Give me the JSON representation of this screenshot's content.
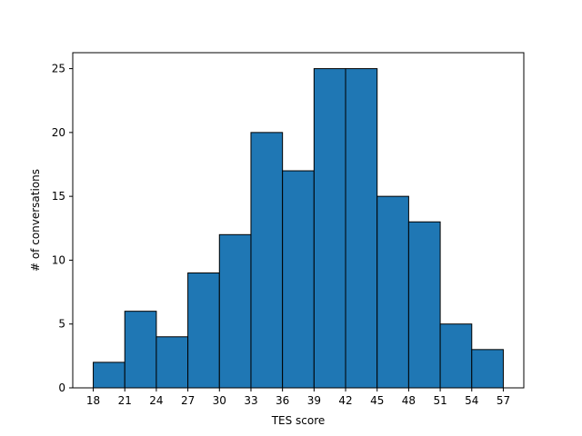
{
  "chart_data": {
    "type": "bar",
    "title": "",
    "xlabel": "TES score",
    "ylabel": "# of conversations",
    "bins": [
      {
        "start": 18,
        "end": 21,
        "count": 2
      },
      {
        "start": 21,
        "end": 24,
        "count": 6
      },
      {
        "start": 24,
        "end": 27,
        "count": 4
      },
      {
        "start": 27,
        "end": 30,
        "count": 9
      },
      {
        "start": 30,
        "end": 33,
        "count": 12
      },
      {
        "start": 33,
        "end": 36,
        "count": 20
      },
      {
        "start": 36,
        "end": 39,
        "count": 17
      },
      {
        "start": 39,
        "end": 42,
        "count": 25
      },
      {
        "start": 42,
        "end": 45,
        "count": 25
      },
      {
        "start": 45,
        "end": 48,
        "count": 15
      },
      {
        "start": 48,
        "end": 51,
        "count": 13
      },
      {
        "start": 51,
        "end": 54,
        "count": 5
      },
      {
        "start": 54,
        "end": 57,
        "count": 3
      }
    ],
    "xticks": [
      18,
      21,
      24,
      27,
      30,
      33,
      36,
      39,
      42,
      45,
      48,
      51,
      54,
      57
    ],
    "yticks": [
      0,
      5,
      10,
      15,
      20,
      25
    ],
    "xlim": [
      16.05,
      58.95
    ],
    "ylim": [
      0,
      26.25
    ],
    "grid": false,
    "colors": {
      "bar_fill": "#1f77b4",
      "bar_edge": "#000000"
    }
  }
}
